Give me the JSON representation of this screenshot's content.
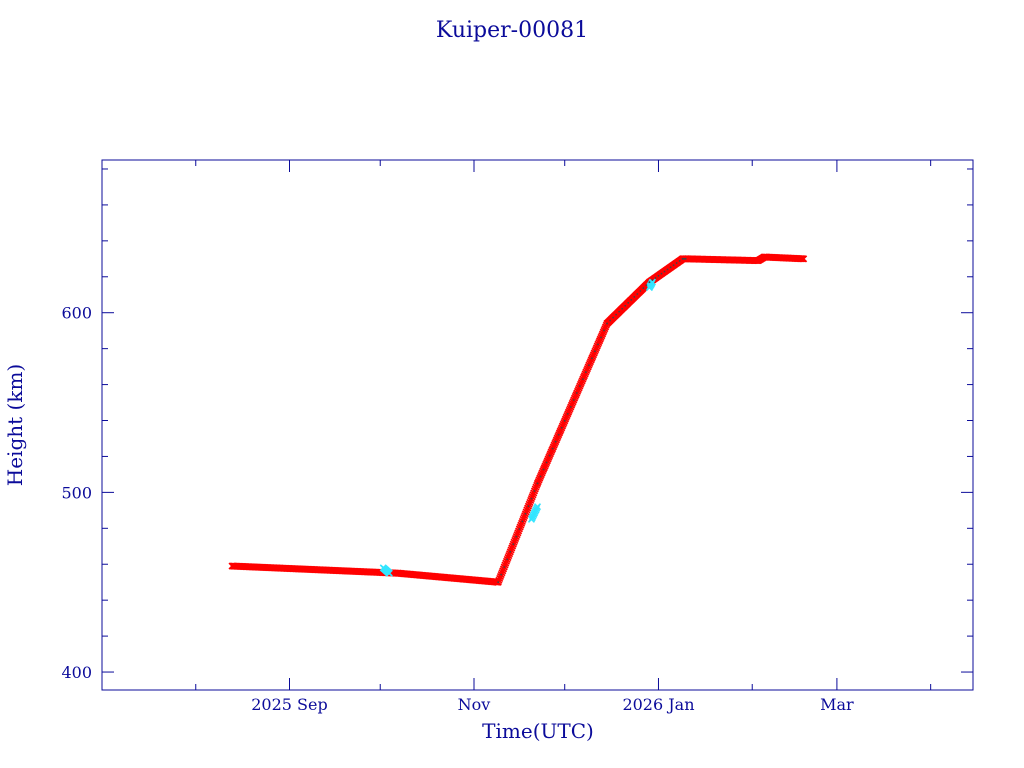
{
  "chart_data": {
    "type": "scatter",
    "title": "Kuiper-00081",
    "xlabel": "Time(UTC)",
    "ylabel": "Height (km)",
    "x_tick_labels": [
      {
        "date": "2025-09-01",
        "label": "2025 Sep"
      },
      {
        "date": "2025-11-01",
        "label": "Nov"
      },
      {
        "date": "2026-01-01",
        "label": "2026 Jan"
      },
      {
        "date": "2026-03-01",
        "label": "Mar"
      }
    ],
    "x_minor_ticks": [
      "2025-08-01",
      "2025-10-01",
      "2025-12-01",
      "2026-02-01",
      "2026-04-01"
    ],
    "y_tick_labels": [
      "400",
      "500",
      "600"
    ],
    "y_major_ticks": [
      400,
      500,
      600
    ],
    "y_minor_step": 20,
    "xlim": [
      "2025-07-01",
      "2026-04-15"
    ],
    "ylim": [
      390,
      685
    ],
    "grid": false,
    "colors": {
      "axes": "#0b0b9a",
      "series_primary": "#ff0000",
      "series_secondary": "#33e5ff",
      "marker_core": "#444444"
    },
    "series": [
      {
        "marker": "cross",
        "color": "#ff0000",
        "segments": [
          {
            "x": [
              "2025-08-13",
              "2025-10-07",
              "2025-11-09"
            ],
            "y": [
              459,
              455,
              450
            ]
          },
          {
            "x": [
              "2025-11-09",
              "2025-11-22",
              "2025-12-15",
              "2025-12-29",
              "2026-01-09",
              "2026-01-10"
            ],
            "y": [
              450,
              505,
              594,
              617,
              630,
              630
            ]
          },
          {
            "x": [
              "2026-01-10",
              "2026-02-03",
              "2026-02-05",
              "2026-02-18"
            ],
            "y": [
              630,
              629,
              631,
              630
            ]
          }
        ]
      },
      {
        "marker": "cross",
        "color": "#33e5ff",
        "segments": [
          {
            "x": [
              "2025-10-02",
              "2025-10-04"
            ],
            "y": [
              458,
              455
            ]
          },
          {
            "x": [
              "2025-11-20",
              "2025-11-22"
            ],
            "y": [
              485,
              492
            ]
          },
          {
            "x": [
              "2025-12-29",
              "2025-12-30"
            ],
            "y": [
              614,
              617
            ]
          }
        ]
      }
    ]
  }
}
